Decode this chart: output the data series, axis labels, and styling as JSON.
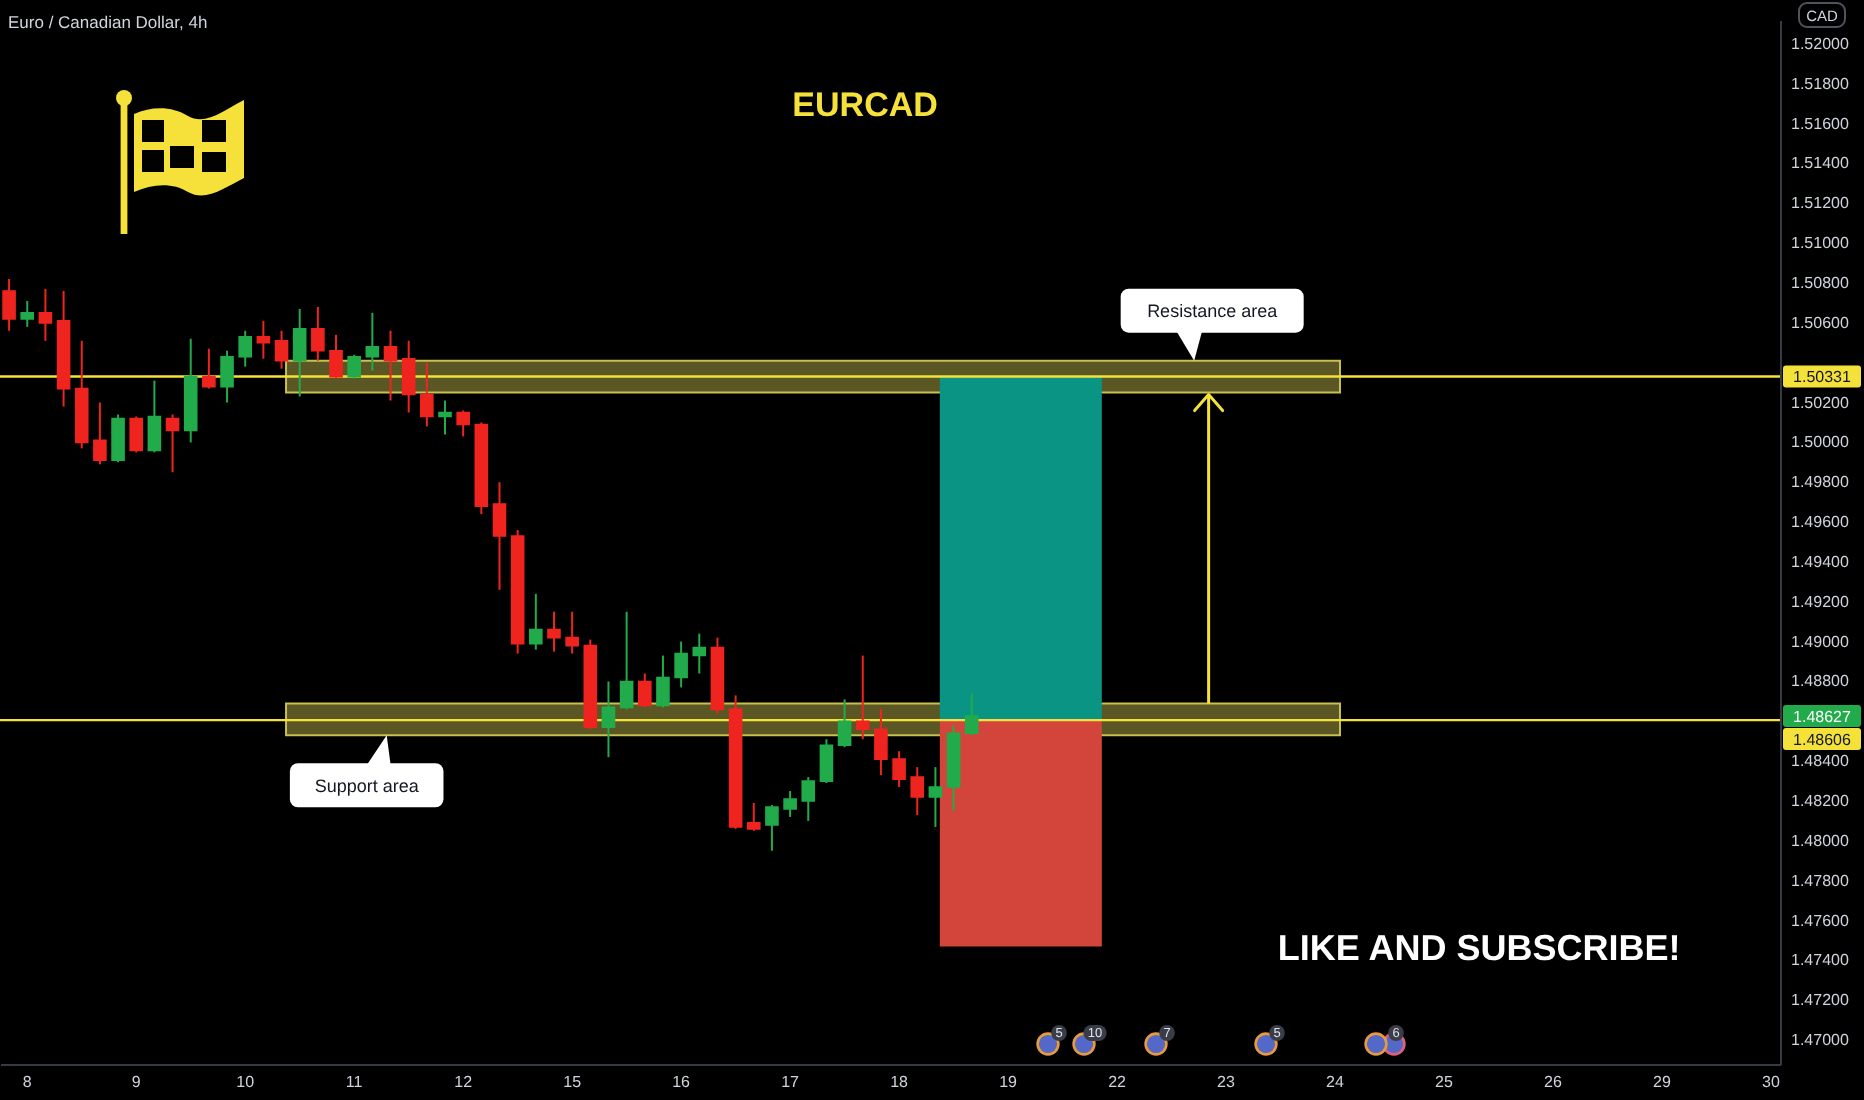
{
  "chart_data": {
    "type": "candlestick",
    "title": "EURCAD",
    "subtitle": "Euro / Canadian Dollar, 4h",
    "ylabel": "CAD",
    "categories": [
      null,
      "8",
      null,
      null,
      null,
      null,
      null,
      "9",
      null,
      null,
      null,
      null,
      null,
      "10",
      null,
      null,
      null,
      null,
      null,
      "11",
      null,
      null,
      null,
      null,
      null,
      "12",
      null,
      null,
      null,
      null,
      null,
      "15",
      null,
      null,
      null,
      null,
      null,
      "16",
      null,
      null,
      null,
      null,
      null,
      "17",
      null,
      null,
      null,
      null,
      null,
      "18",
      null,
      null,
      null,
      null,
      null,
      "19",
      null,
      null,
      null,
      null,
      null,
      "22",
      null,
      null,
      null,
      null,
      null,
      "23",
      null,
      null,
      null,
      null,
      null,
      "24",
      null,
      null,
      null,
      null,
      null,
      "25",
      null,
      null,
      null,
      null,
      null,
      "26",
      null,
      null,
      null,
      null,
      null,
      "29",
      null,
      null,
      null,
      null,
      null,
      "30"
    ],
    "ohlc": [
      [
        1.5076,
        1.5082,
        1.5056,
        1.5062
      ],
      [
        1.5062,
        1.5071,
        1.5058,
        1.5065
      ],
      [
        1.5065,
        1.5077,
        1.5051,
        1.506
      ],
      [
        1.5061,
        1.5076,
        1.5018,
        1.5027
      ],
      [
        1.5027,
        1.5051,
        1.4997,
        1.5
      ],
      [
        1.5001,
        1.502,
        1.4989,
        1.4991
      ],
      [
        1.4991,
        1.5014,
        1.499,
        1.5012
      ],
      [
        1.5012,
        1.5013,
        1.4995,
        1.4996
      ],
      [
        1.4996,
        1.5031,
        1.4995,
        1.5013
      ],
      [
        1.5012,
        1.5014,
        1.4985,
        1.5006
      ],
      [
        1.5006,
        1.5052,
        1.5,
        1.5033
      ],
      [
        1.5033,
        1.5047,
        1.5027,
        1.5028
      ],
      [
        1.5028,
        1.5046,
        1.502,
        1.5043
      ],
      [
        1.5043,
        1.5056,
        1.5038,
        1.5053
      ],
      [
        1.5053,
        1.5061,
        1.5042,
        1.505
      ],
      [
        1.5051,
        1.5056,
        1.5037,
        1.5041
      ],
      [
        1.5041,
        1.5067,
        1.5023,
        1.5057
      ],
      [
        1.5057,
        1.5068,
        1.5041,
        1.5046
      ],
      [
        1.5046,
        1.5054,
        1.5032,
        1.5033
      ],
      [
        1.5033,
        1.5044,
        1.5032,
        1.5043
      ],
      [
        1.5043,
        1.5065,
        1.5036,
        1.5048
      ],
      [
        1.5048,
        1.5056,
        1.5021,
        1.5041
      ],
      [
        1.5042,
        1.5051,
        1.5015,
        1.5024
      ],
      [
        1.5024,
        1.504,
        1.5008,
        1.5013
      ],
      [
        1.5013,
        1.5021,
        1.5004,
        1.5015
      ],
      [
        1.5015,
        1.5016,
        1.5003,
        1.5009
      ],
      [
        1.5009,
        1.501,
        1.4964,
        1.4968
      ],
      [
        1.4969,
        1.498,
        1.4926,
        1.4953
      ],
      [
        1.4953,
        1.4956,
        1.4894,
        1.4899
      ],
      [
        1.4899,
        1.4924,
        1.4896,
        1.4906
      ],
      [
        1.4906,
        1.4915,
        1.4895,
        1.4902
      ],
      [
        1.4902,
        1.4915,
        1.4894,
        1.4898
      ],
      [
        1.4898,
        1.4901,
        1.4856,
        1.4857
      ],
      [
        1.4857,
        1.488,
        1.4842,
        1.4867
      ],
      [
        1.4867,
        1.4915,
        1.4866,
        1.488
      ],
      [
        1.488,
        1.4884,
        1.4867,
        1.4868
      ],
      [
        1.4868,
        1.4893,
        1.4867,
        1.4882
      ],
      [
        1.4882,
        1.49,
        1.4877,
        1.4894
      ],
      [
        1.4893,
        1.4904,
        1.4884,
        1.4897
      ],
      [
        1.4897,
        1.4902,
        1.4864,
        1.4866
      ],
      [
        1.4866,
        1.4873,
        1.4806,
        1.4807
      ],
      [
        1.4809,
        1.4819,
        1.4805,
        1.4806
      ],
      [
        1.4808,
        1.4818,
        1.4795,
        1.4817
      ],
      [
        1.4816,
        1.4825,
        1.4812,
        1.4821
      ],
      [
        1.482,
        1.4832,
        1.481,
        1.483
      ],
      [
        1.483,
        1.4851,
        1.4829,
        1.4848
      ],
      [
        1.4848,
        1.4871,
        1.4847,
        1.486
      ],
      [
        1.486,
        1.4893,
        1.4851,
        1.4856
      ],
      [
        1.4856,
        1.4866,
        1.4833,
        1.4841
      ],
      [
        1.4841,
        1.4845,
        1.4827,
        1.4831
      ],
      [
        1.4832,
        1.4837,
        1.4813,
        1.4822
      ],
      [
        1.4822,
        1.4837,
        1.4807,
        1.4827
      ],
      [
        1.4827,
        1.4858,
        1.4815,
        1.4854
      ],
      [
        1.4854,
        1.4874,
        1.4853,
        1.48627
      ],
      null,
      null,
      null,
      null,
      null,
      null,
      null,
      null,
      null,
      null,
      null,
      null,
      null,
      null,
      null,
      null,
      null,
      null,
      null,
      null,
      null,
      null,
      null,
      null,
      null,
      null,
      null,
      null,
      null,
      null,
      null,
      null,
      null,
      null,
      null,
      null,
      null,
      null,
      null,
      null,
      null,
      null,
      null,
      null
    ],
    "colors": [
      "#f0241f",
      "#22ab4a",
      "#f0241f",
      "#f0241f",
      "#f0241f",
      "#f0241f",
      "#22ab4a",
      "#f0241f",
      "#22ab4a",
      "#f0241f",
      "#22ab4a",
      "#f0241f",
      "#22ab4a",
      "#22ab4a",
      "#f0241f",
      "#f0241f",
      "#22ab4a",
      "#f0241f",
      "#f0241f",
      "#22ab4a",
      "#22ab4a",
      "#f0241f",
      "#f0241f",
      "#f0241f",
      "#22ab4a",
      "#f0241f",
      "#f0241f",
      "#f0241f",
      "#f0241f",
      "#22ab4a",
      "#f0241f",
      "#f0241f",
      "#f0241f",
      "#22ab4a",
      "#22ab4a",
      "#f0241f",
      "#22ab4a",
      "#22ab4a",
      "#22ab4a",
      "#f0241f",
      "#f0241f",
      "#f0241f",
      "#22ab4a",
      "#22ab4a",
      "#22ab4a",
      "#22ab4a",
      "#22ab4a",
      "#f0241f",
      "#f0241f",
      "#f0241f",
      "#f0241f",
      "#22ab4a",
      "#22ab4a",
      "#22ab4a",
      null,
      null,
      null,
      null,
      null,
      null,
      null,
      null,
      null,
      null,
      null,
      null,
      null,
      null,
      null,
      null,
      null,
      null,
      null,
      null,
      null,
      null,
      null,
      null,
      null,
      null,
      null,
      null,
      null,
      null,
      null,
      null,
      null,
      null,
      null,
      null,
      null,
      null,
      null,
      null,
      null,
      null,
      null,
      null
    ],
    "bands": [
      {
        "axis": "y",
        "from": 1.5025,
        "to": 1.5041,
        "label": "Resistance area",
        "color": "#c8c050"
      },
      {
        "axis": "y",
        "from": 1.4853,
        "to": 1.4869,
        "label": "Support area",
        "color": "#c8c050"
      },
      {
        "axis": "y",
        "from": 1.4861,
        "to": 1.5033,
        "color": "#0a9484"
      },
      {
        "axis": "y",
        "from": 1.4747,
        "to": 1.4861,
        "color": "#d3443a"
      }
    ],
    "ref_lines": [
      {
        "axis": "y",
        "value": 1.50331,
        "label": "1.50331",
        "color": "#f4e23b"
      },
      {
        "axis": "y",
        "value": 1.48606,
        "label": "1.48606",
        "color": "#f4e23b"
      }
    ],
    "annotations": [
      "LIKE AND SUBSCRIBE!",
      "1.48627",
      "5",
      "10",
      "7",
      "5",
      "6"
    ],
    "ylim": [
      1.4688,
      1.5212
    ],
    "yticks": [
      {
        "value": 1.47,
        "label": "1.47000"
      },
      {
        "value": 1.472,
        "label": "1.47200"
      },
      {
        "value": 1.474,
        "label": "1.47400"
      },
      {
        "value": 1.476,
        "label": "1.47600"
      },
      {
        "value": 1.478,
        "label": "1.47800"
      },
      {
        "value": 1.48,
        "label": "1.48000"
      },
      {
        "value": 1.482,
        "label": "1.48200"
      },
      {
        "value": 1.484,
        "label": "1.48400"
      },
      {
        "value": 1.488,
        "label": "1.48800"
      },
      {
        "value": 1.49,
        "label": "1.49000"
      },
      {
        "value": 1.492,
        "label": "1.49200"
      },
      {
        "value": 1.494,
        "label": "1.49400"
      },
      {
        "value": 1.496,
        "label": "1.49600"
      },
      {
        "value": 1.498,
        "label": "1.49800"
      },
      {
        "value": 1.5,
        "label": "1.50000"
      },
      {
        "value": 1.502,
        "label": "1.50200"
      },
      {
        "value": 1.506,
        "label": "1.50600"
      },
      {
        "value": 1.508,
        "label": "1.50800"
      },
      {
        "value": 1.51,
        "label": "1.51000"
      },
      {
        "value": 1.512,
        "label": "1.51200"
      },
      {
        "value": 1.514,
        "label": "1.51400"
      },
      {
        "value": 1.516,
        "label": "1.51600"
      },
      {
        "value": 1.518,
        "label": "1.51800"
      },
      {
        "value": 1.52,
        "label": "1.52000"
      }
    ]
  }
}
